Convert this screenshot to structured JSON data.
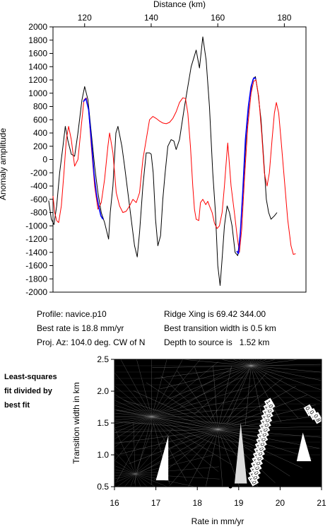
{
  "chart_data": [
    {
      "type": "line",
      "xlabel": "Distance (km)",
      "ylabel": "Anomaly amplitude",
      "xlim": [
        110.5,
        186.5
      ],
      "ylim": [
        -2000,
        2000
      ],
      "x_ticks": [
        120,
        140,
        160,
        180
      ],
      "y_ticks": [
        2000,
        1800,
        1600,
        1400,
        1200,
        1000,
        800,
        600,
        400,
        200,
        0,
        -200,
        -400,
        -600,
        -800,
        -1000,
        -1200,
        -1400,
        -1600,
        -1800,
        -2000
      ],
      "grid": false,
      "series": [
        {
          "color": "#000000",
          "values": [
            [
              109.2,
              -620
            ],
            [
              110.0,
              -900
            ],
            [
              110.8,
              -980
            ],
            [
              111.6,
              -700
            ],
            [
              112.5,
              -200
            ],
            [
              113.5,
              200
            ],
            [
              114.2,
              500
            ],
            [
              115.0,
              280
            ],
            [
              116.0,
              80
            ],
            [
              117.0,
              50
            ],
            [
              118.0,
              400
            ],
            [
              119.2,
              900
            ],
            [
              120.0,
              1100
            ],
            [
              121.0,
              900
            ],
            [
              122.0,
              400
            ],
            [
              123.0,
              -100
            ],
            [
              124.0,
              -500
            ],
            [
              125.0,
              -800
            ],
            [
              126.0,
              -950
            ],
            [
              127.2,
              -1200
            ],
            [
              127.7,
              -800
            ],
            [
              128.5,
              -400
            ],
            [
              129.4,
              400
            ],
            [
              130.0,
              500
            ],
            [
              131.2,
              200
            ],
            [
              132.0,
              -100
            ],
            [
              133.0,
              -500
            ],
            [
              134.0,
              -900
            ],
            [
              135.0,
              -1300
            ],
            [
              135.8,
              -1470
            ],
            [
              136.5,
              -1100
            ],
            [
              137.5,
              -400
            ],
            [
              138.5,
              100
            ],
            [
              139.5,
              100
            ],
            [
              140.0,
              80
            ],
            [
              140.6,
              -200
            ],
            [
              141.3,
              -900
            ],
            [
              142.0,
              -1300
            ],
            [
              142.8,
              -1150
            ],
            [
              143.5,
              -600
            ],
            [
              144.2,
              -200
            ],
            [
              145.0,
              200
            ],
            [
              146.0,
              300
            ],
            [
              146.8,
              280
            ],
            [
              147.5,
              150
            ],
            [
              148.5,
              300
            ],
            [
              150.0,
              800
            ],
            [
              151.0,
              1100
            ],
            [
              152.0,
              1400
            ],
            [
              153.5,
              1650
            ],
            [
              154.5,
              1380
            ],
            [
              155.5,
              1850
            ],
            [
              156.5,
              1500
            ],
            [
              157.5,
              800
            ],
            [
              158.5,
              -200
            ],
            [
              159.3,
              -800
            ],
            [
              160.0,
              -1600
            ],
            [
              160.7,
              -1900
            ],
            [
              161.3,
              -1500
            ],
            [
              162.0,
              -1000
            ],
            [
              162.8,
              -700
            ],
            [
              163.5,
              -800
            ],
            [
              164.3,
              -1000
            ],
            [
              165.2,
              -1400
            ],
            [
              166.0,
              -1450
            ],
            [
              166.8,
              -1100
            ],
            [
              167.7,
              -400
            ],
            [
              168.6,
              400
            ],
            [
              169.5,
              900
            ],
            [
              170.5,
              1200
            ],
            [
              171.3,
              1250
            ],
            [
              172.1,
              1000
            ],
            [
              173.0,
              600
            ],
            [
              173.8,
              0
            ],
            [
              174.6,
              -600
            ],
            [
              175.3,
              -800
            ],
            [
              176.0,
              -900
            ],
            [
              177.0,
              -850
            ],
            [
              177.8,
              -800
            ]
          ]
        },
        {
          "color": "#ff0000",
          "values": [
            [
              110.5,
              -550
            ],
            [
              111.0,
              -800
            ],
            [
              111.6,
              -920
            ],
            [
              112.2,
              -950
            ],
            [
              113.0,
              -700
            ],
            [
              113.8,
              -200
            ],
            [
              114.5,
              300
            ],
            [
              115.2,
              500
            ],
            [
              116.0,
              300
            ],
            [
              117.0,
              -100
            ],
            [
              118.0,
              0
            ],
            [
              119.0,
              500
            ],
            [
              119.8,
              900
            ],
            [
              120.5,
              930
            ],
            [
              121.2,
              750
            ],
            [
              122.0,
              200
            ],
            [
              123.0,
              -400
            ],
            [
              124.0,
              -750
            ],
            [
              125.0,
              -650
            ],
            [
              126.0,
              -300
            ],
            [
              127.0,
              200
            ],
            [
              127.5,
              400
            ],
            [
              128.5,
              100
            ],
            [
              129.5,
              -500
            ],
            [
              130.5,
              -700
            ],
            [
              131.5,
              -800
            ],
            [
              132.5,
              -780
            ],
            [
              133.5,
              -700
            ],
            [
              134.5,
              -600
            ],
            [
              135.5,
              -650
            ],
            [
              136.5,
              -500
            ],
            [
              137.5,
              0
            ],
            [
              138.5,
              300
            ],
            [
              139.5,
              600
            ],
            [
              140.5,
              650
            ],
            [
              141.5,
              620
            ],
            [
              142.5,
              580
            ],
            [
              143.5,
              550
            ],
            [
              144.5,
              540
            ],
            [
              145.5,
              560
            ],
            [
              146.5,
              620
            ],
            [
              147.5,
              720
            ],
            [
              148.5,
              860
            ],
            [
              149.5,
              930
            ],
            [
              150.3,
              920
            ],
            [
              151.0,
              700
            ],
            [
              151.8,
              200
            ],
            [
              152.5,
              -400
            ],
            [
              153.0,
              -750
            ],
            [
              153.5,
              -900
            ],
            [
              154.3,
              -920
            ],
            [
              154.8,
              -650
            ],
            [
              155.5,
              -600
            ],
            [
              156.4,
              -680
            ],
            [
              157.0,
              -630
            ],
            [
              157.5,
              -700
            ],
            [
              158.3,
              -800
            ],
            [
              159.0,
              -960
            ],
            [
              159.8,
              -1040
            ],
            [
              160.5,
              -1000
            ],
            [
              161.3,
              -800
            ],
            [
              162.0,
              -400
            ],
            [
              162.6,
              0
            ],
            [
              163.0,
              250
            ],
            [
              163.5,
              -80
            ],
            [
              164.0,
              -400
            ],
            [
              165.0,
              -800
            ],
            [
              165.8,
              -1150
            ],
            [
              166.5,
              -1400
            ],
            [
              167.2,
              -1050
            ],
            [
              168.0,
              -300
            ],
            [
              169.0,
              500
            ],
            [
              170.0,
              1000
            ],
            [
              170.8,
              1180
            ],
            [
              171.5,
              1200
            ],
            [
              172.3,
              950
            ],
            [
              173.2,
              400
            ],
            [
              174.0,
              -200
            ],
            [
              174.8,
              -400
            ],
            [
              175.5,
              -200
            ],
            [
              176.3,
              300
            ],
            [
              177.0,
              700
            ],
            [
              177.6,
              860
            ],
            [
              178.3,
              700
            ],
            [
              179.0,
              300
            ],
            [
              180.0,
              -300
            ],
            [
              181.0,
              -900
            ],
            [
              182.0,
              -1300
            ],
            [
              182.7,
              -1430
            ],
            [
              183.4,
              -1420
            ]
          ]
        },
        {
          "color": "#0000ff",
          "values": [
            [
              119.6,
              870
            ],
            [
              120.4,
              920
            ],
            [
              121.2,
              750
            ],
            [
              122.0,
              300
            ],
            [
              122.8,
              -200
            ],
            [
              123.5,
              -500
            ],
            [
              124.2,
              -700
            ],
            [
              124.9,
              -850
            ],
            [
              125.5,
              -900
            ]
          ]
        },
        {
          "color": "#0000ff",
          "values": [
            [
              165.7,
              -1380
            ],
            [
              166.2,
              -1420
            ],
            [
              166.8,
              -1100
            ],
            [
              167.5,
              -500
            ],
            [
              168.3,
              300
            ],
            [
              169.2,
              800
            ],
            [
              170.0,
              1100
            ],
            [
              170.8,
              1230
            ],
            [
              171.5,
              1220
            ]
          ]
        }
      ]
    },
    {
      "type": "heatmap",
      "xlabel": "Rate in mm/yr",
      "ylabel": "Transition width in km",
      "xlim": [
        16,
        21
      ],
      "ylim": [
        0.5,
        2.5
      ],
      "x_ticks": [
        "16",
        "17",
        "18",
        "19",
        "20",
        "21"
      ],
      "y_ticks": [
        "0.5",
        "1.0",
        "1.5",
        "2.0",
        "2.5"
      ],
      "best_fit_point": [
        18.8,
        0.5
      ],
      "contour_labels": [
        "1.0",
        "1.0",
        "1.0",
        "1.0",
        "1.0",
        "1.0",
        "1.0",
        "1.0",
        "1.0",
        "1.0",
        "1.0",
        "1.0",
        "1.0",
        "1.0",
        "1.0",
        "1.0",
        "1.0",
        "0.8",
        "0.8",
        "0.8"
      ]
    }
  ],
  "info": {
    "profile": "Profile: navice.p10",
    "best_rate": "Best rate is 18.8 mm/yr",
    "proj_az": "Proj. Az: 104.0 deg. CW of N",
    "ridge_xing": "Ridge Xing is 69.42 344.00",
    "best_transition": "Best transition width is 0.5 km",
    "depth": "Depth to source is   1.52 km"
  },
  "side_note": [
    "Least-squares",
    "fit divided by",
    "best fit"
  ]
}
